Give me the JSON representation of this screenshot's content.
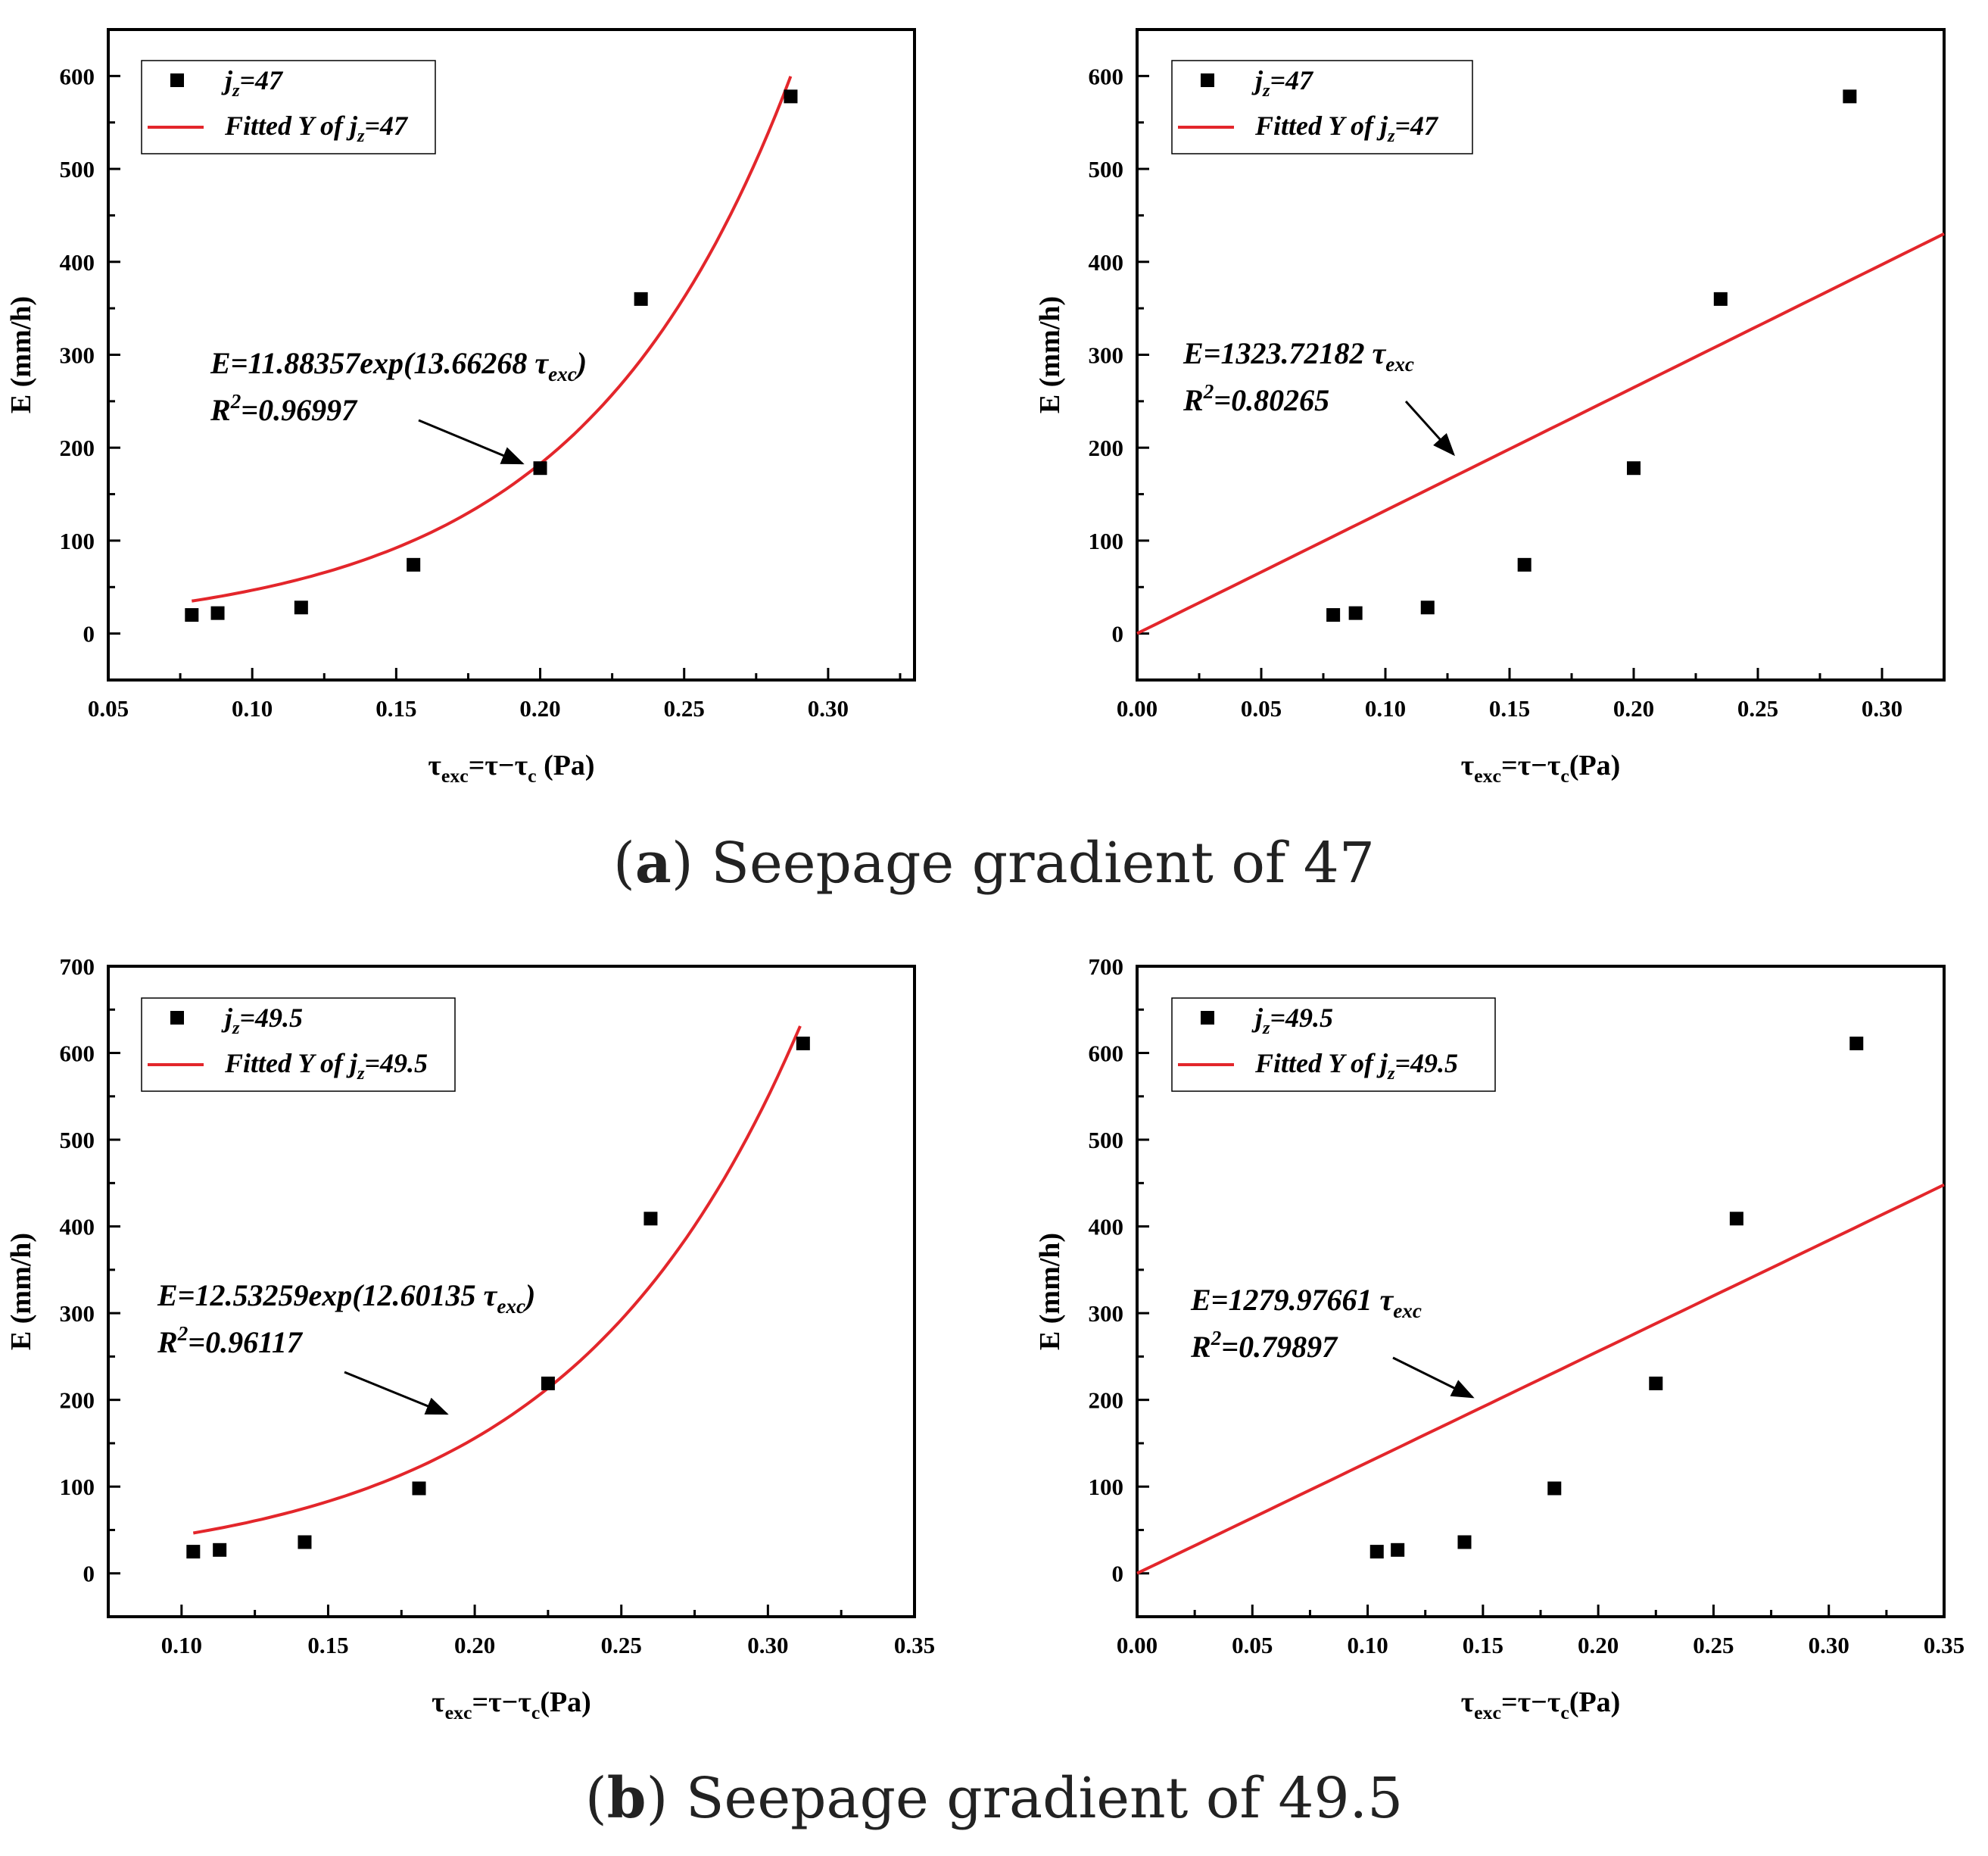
{
  "captions": [
    {
      "letter": "a",
      "text": " Seepage gradient of 47"
    },
    {
      "letter": "b",
      "text": " Seepage gradient of 49.5"
    }
  ],
  "colors": {
    "fit": "#e3262b",
    "marker": "#000000",
    "frame": "#000000"
  },
  "chart_data": [
    {
      "type": "scatter",
      "ylabel": "E (mm/h)",
      "xlabel": {
        "base": "τ",
        "sub1": "exc",
        "mid": "=τ−τ",
        "sub2": "c",
        "tail": " (Pa)"
      },
      "xlim": [
        0.05,
        0.33
      ],
      "ylim": [
        -50,
        650
      ],
      "xticks": [
        0.05,
        0.1,
        0.15,
        0.2,
        0.25,
        0.3
      ],
      "xtick_labels": [
        "0.05",
        "0.10",
        "0.15",
        "0.20",
        "0.25",
        "0.30"
      ],
      "yticks": [
        0,
        100,
        200,
        300,
        400,
        500,
        600
      ],
      "ytick_labels": [
        "0",
        "100",
        "200",
        "300",
        "400",
        "500",
        "600"
      ],
      "series": [
        {
          "kind": "points",
          "x": [
            0.079,
            0.088,
            0.117,
            0.156,
            0.2,
            0.235,
            0.287
          ],
          "y": [
            20,
            22,
            28,
            74,
            178,
            360,
            578
          ]
        },
        {
          "kind": "fit",
          "model": "exp",
          "a": 11.88357,
          "b": 13.66268,
          "x_range": [
            0.079,
            0.287
          ]
        }
      ],
      "legend": {
        "position": "top-left",
        "entries": [
          {
            "pre": "j",
            "sub": "z",
            "post": "=47"
          },
          {
            "pre": "Fitted Y of j",
            "sub": "z",
            "post": "=47"
          }
        ]
      },
      "annotation": {
        "line1": {
          "pre": "E=11.88357exp(13.66268 τ",
          "sub": "exc",
          "post": ")"
        },
        "line2": {
          "pre": "R",
          "sup": "2",
          "post": "=0.96997"
        }
      }
    },
    {
      "type": "scatter",
      "ylabel": "E (mm/h)",
      "xlabel": {
        "base": "τ",
        "sub1": "exc",
        "mid": "=τ−τ",
        "sub2": "c",
        "tail": "(Pa)"
      },
      "xlim": [
        0.0,
        0.325
      ],
      "ylim": [
        -50,
        650
      ],
      "xticks": [
        0.0,
        0.05,
        0.1,
        0.15,
        0.2,
        0.25,
        0.3
      ],
      "xtick_labels": [
        "0.00",
        "0.05",
        "0.10",
        "0.15",
        "0.20",
        "0.25",
        "0.30"
      ],
      "yticks": [
        0,
        100,
        200,
        300,
        400,
        500,
        600
      ],
      "ytick_labels": [
        "0",
        "100",
        "200",
        "300",
        "400",
        "500",
        "600"
      ],
      "series": [
        {
          "kind": "points",
          "x": [
            0.079,
            0.088,
            0.117,
            0.156,
            0.2,
            0.235,
            0.287
          ],
          "y": [
            20,
            22,
            28,
            74,
            178,
            360,
            578
          ]
        },
        {
          "kind": "fit",
          "model": "linear",
          "a": 1323.72182,
          "x_range": [
            0.0,
            0.325
          ]
        }
      ],
      "legend": {
        "position": "top-left",
        "entries": [
          {
            "pre": "j",
            "sub": "z",
            "post": "=47"
          },
          {
            "pre": "Fitted Y of  j",
            "sub": "z",
            "post": "=47"
          }
        ]
      },
      "annotation": {
        "line1": {
          "pre": "E=1323.72182 τ",
          "sub": "exc",
          "post": ""
        },
        "line2": {
          "pre": "R",
          "sup": "2",
          "post": "=0.80265"
        }
      }
    },
    {
      "type": "scatter",
      "ylabel": "E (mm/h)",
      "xlabel": {
        "base": "τ",
        "sub1": "exc",
        "mid": "=τ−τ",
        "sub2": "c",
        "tail": "(Pa)"
      },
      "xlim": [
        0.075,
        0.35
      ],
      "ylim": [
        -50,
        700
      ],
      "xticks": [
        0.1,
        0.15,
        0.2,
        0.25,
        0.3,
        0.35
      ],
      "xtick_labels": [
        "0.10",
        "0.15",
        "0.20",
        "0.25",
        "0.30",
        "0.35"
      ],
      "yticks": [
        0,
        100,
        200,
        300,
        400,
        500,
        600,
        700
      ],
      "ytick_labels": [
        "0",
        "100",
        "200",
        "300",
        "400",
        "500",
        "600",
        "700"
      ],
      "series": [
        {
          "kind": "points",
          "x": [
            0.104,
            0.113,
            0.142,
            0.181,
            0.225,
            0.26,
            0.312
          ],
          "y": [
            25,
            27,
            36,
            98,
            219,
            409,
            611
          ]
        },
        {
          "kind": "fit",
          "model": "exp",
          "a": 12.53259,
          "b": 12.60135,
          "x_range": [
            0.104,
            0.311
          ]
        }
      ],
      "legend": {
        "position": "top-left",
        "entries": [
          {
            "pre": "j",
            "sub": "z",
            "post": "=49.5"
          },
          {
            "pre": "Fitted Y of j",
            "sub": "z",
            "post": "=49.5"
          }
        ]
      },
      "annotation": {
        "line1": {
          "pre": "E=12.53259exp(12.60135 τ",
          "sub": "exc",
          "post": ")"
        },
        "line2": {
          "pre": "R",
          "sup": "2",
          "post": "=0.96117"
        }
      }
    },
    {
      "type": "scatter",
      "ylabel": "E (mm/h)",
      "xlabel": {
        "base": "τ",
        "sub1": "exc",
        "mid": "=τ−τ",
        "sub2": "c",
        "tail": "(Pa)"
      },
      "xlim": [
        0.0,
        0.35
      ],
      "ylim": [
        -50,
        700
      ],
      "xticks": [
        0.0,
        0.05,
        0.1,
        0.15,
        0.2,
        0.25,
        0.3,
        0.35
      ],
      "xtick_labels": [
        "0.00",
        "0.05",
        "0.10",
        "0.15",
        "0.20",
        "0.25",
        "0.30",
        "0.35"
      ],
      "yticks": [
        0,
        100,
        200,
        300,
        400,
        500,
        600,
        700
      ],
      "ytick_labels": [
        "0",
        "100",
        "200",
        "300",
        "400",
        "500",
        "600",
        "700"
      ],
      "series": [
        {
          "kind": "points",
          "x": [
            0.104,
            0.113,
            0.142,
            0.181,
            0.225,
            0.26,
            0.312
          ],
          "y": [
            25,
            27,
            36,
            98,
            219,
            409,
            611
          ]
        },
        {
          "kind": "fit",
          "model": "linear",
          "a": 1279.97661,
          "x_range": [
            0.0,
            0.35
          ]
        }
      ],
      "legend": {
        "position": "top-left",
        "entries": [
          {
            "pre": "j",
            "sub": "z",
            "post": "=49.5"
          },
          {
            "pre": "Fitted Y of  j",
            "sub": "z",
            "post": "=49.5"
          }
        ]
      },
      "annotation": {
        "line1": {
          "pre": "E=1279.97661 τ",
          "sub": "exc",
          "post": ""
        },
        "line2": {
          "pre": "R",
          "sup": "2",
          "post": "=0.79897"
        }
      }
    }
  ]
}
